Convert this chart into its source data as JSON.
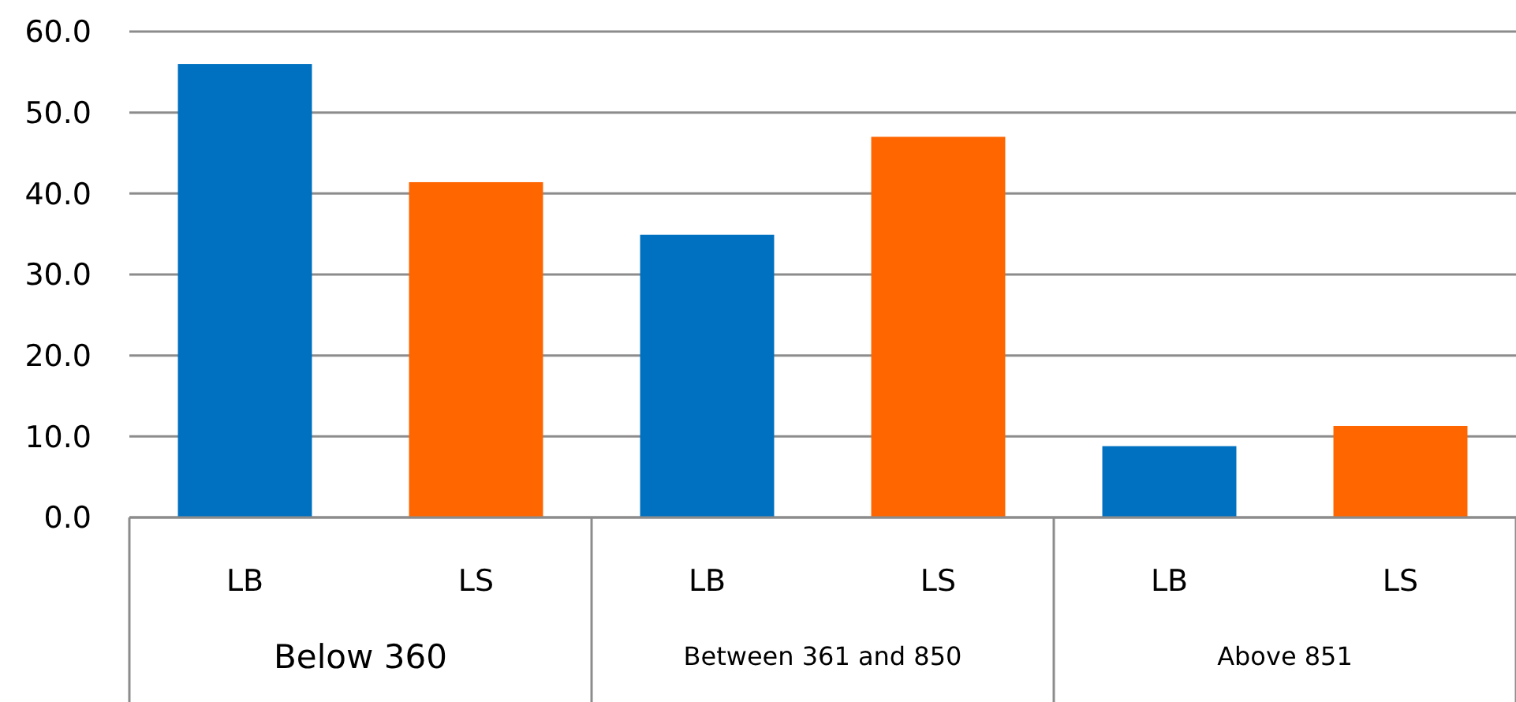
{
  "chart_data": {
    "type": "bar",
    "categories": [
      "LB",
      "LS",
      "LB",
      "LS",
      "LB",
      "LS"
    ],
    "values": [
      56.0,
      41.4,
      34.9,
      47.0,
      8.8,
      11.3
    ],
    "colors": [
      "#0070c0",
      "#ff6600",
      "#0070c0",
      "#ff6600",
      "#0070c0",
      "#ff6600"
    ],
    "ylim": [
      0,
      60
    ],
    "yticks": [
      {
        "value": 0,
        "label": "0.0"
      },
      {
        "value": 10,
        "label": "10.0"
      },
      {
        "value": 20,
        "label": "20.0"
      },
      {
        "value": 30,
        "label": "30.0"
      },
      {
        "value": 40,
        "label": "40.0"
      },
      {
        "value": 50,
        "label": "50.0"
      },
      {
        "value": 60,
        "label": "60.0"
      }
    ],
    "grid": "y",
    "annotations": [
      "Below 360",
      "Between 361 and 850",
      "Above 851"
    ]
  }
}
